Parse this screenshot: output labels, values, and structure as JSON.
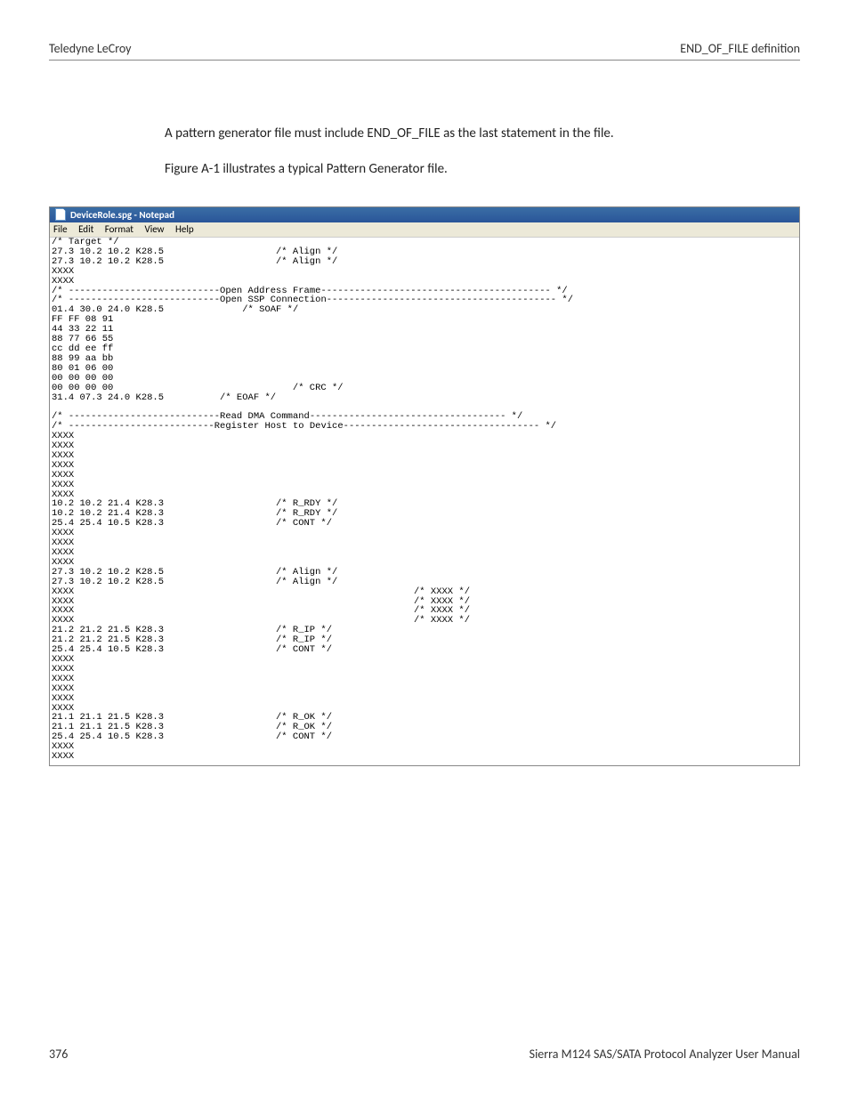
{
  "header": {
    "left": "Teledyne LeCroy",
    "right": "END_OF_FILE definition"
  },
  "paragraphs": {
    "p1": "A pattern generator file must include END_OF_FILE as the last statement in the file.",
    "p2": "Figure A-1 illustrates a typical Pattern Generator file."
  },
  "notepad": {
    "title": "DeviceRole.spg - Notepad",
    "menu": {
      "file": "File",
      "edit": "Edit",
      "format": "Format",
      "view": "View",
      "help": "Help"
    },
    "lines": [
      {
        "c0": "/* Target */",
        "c1": "",
        "c2": ""
      },
      {
        "c0": "27.3 10.2 10.2 K28.5",
        "c1": "/* Align */",
        "c2": ""
      },
      {
        "c0": "27.3 10.2 10.2 K28.5",
        "c1": "/* Align */",
        "c2": ""
      },
      {
        "c0": "XXXX",
        "c1": "",
        "c2": ""
      },
      {
        "c0": "XXXX",
        "c1": "",
        "c2": ""
      },
      {
        "full": "/* ---------------------------Open Address Frame----------------------------------------- */"
      },
      {
        "full": "/* ---------------------------Open SSP Connection----------------------------------------- */"
      },
      {
        "c0": "01.4 30.0 24.0 K28.5",
        "c0pad": "              /* SOAF */",
        "c1": "",
        "c2": ""
      },
      {
        "c0": "FF FF 08 91",
        "c1": "",
        "c2": ""
      },
      {
        "c0": "44 33 22 11",
        "c1": "",
        "c2": ""
      },
      {
        "c0": "88 77 66 55",
        "c1": "",
        "c2": ""
      },
      {
        "c0": "cc dd ee ff",
        "c1": "",
        "c2": ""
      },
      {
        "c0": "88 99 aa bb",
        "c1": "",
        "c2": ""
      },
      {
        "c0": "80 01 06 00",
        "c1": "",
        "c2": ""
      },
      {
        "c0": "00 00 00 00",
        "c1": "",
        "c2": ""
      },
      {
        "c0": "00 00 00 00",
        "c1": "   /* CRC */",
        "c2": ""
      },
      {
        "c0": "31.4 07.3 24.0 K28.5",
        "c0pad": "          /* EOAF */",
        "c1": "",
        "c2": ""
      },
      {
        "c0": " ",
        "c1": "",
        "c2": ""
      },
      {
        "full": "/* ---------------------------Read DMA Command----------------------------------- */"
      },
      {
        "full": "/* --------------------------Register Host to Device----------------------------------- */"
      },
      {
        "c0": "XXXX",
        "c1": "",
        "c2": ""
      },
      {
        "c0": "XXXX",
        "c1": "",
        "c2": ""
      },
      {
        "c0": "XXXX",
        "c1": "",
        "c2": ""
      },
      {
        "c0": "XXXX",
        "c1": "",
        "c2": ""
      },
      {
        "c0": "XXXX",
        "c1": "",
        "c2": ""
      },
      {
        "c0": "XXXX",
        "c1": "",
        "c2": ""
      },
      {
        "c0": "XXXX",
        "c1": "",
        "c2": ""
      },
      {
        "c0": "10.2 10.2 21.4 K28.3",
        "c1": "/* R_RDY */",
        "c2": ""
      },
      {
        "c0": "10.2 10.2 21.4 K28.3",
        "c1": "/* R_RDY */",
        "c2": ""
      },
      {
        "c0": "25.4 25.4 10.5 K28.3",
        "c1": "/* CONT */",
        "c2": ""
      },
      {
        "c0": "XXXX",
        "c1": "",
        "c2": ""
      },
      {
        "c0": "XXXX",
        "c1": "",
        "c2": ""
      },
      {
        "c0": "XXXX",
        "c1": "",
        "c2": ""
      },
      {
        "c0": "XXXX",
        "c1": "",
        "c2": ""
      },
      {
        "c0": "27.3 10.2 10.2 K28.5",
        "c1": "/* Align */",
        "c2": ""
      },
      {
        "c0": "27.3 10.2 10.2 K28.5",
        "c1": "/* Align */",
        "c2": ""
      },
      {
        "c0": "XXXX",
        "c1": "",
        "c2": "/* XXXX */"
      },
      {
        "c0": "XXXX",
        "c1": "",
        "c2": "/* XXXX */"
      },
      {
        "c0": "XXXX",
        "c1": "",
        "c2": "/* XXXX */"
      },
      {
        "c0": "XXXX",
        "c1": "",
        "c2": "/* XXXX */"
      },
      {
        "c0": "21.2 21.2 21.5 K28.3",
        "c1": "/* R_IP */",
        "c2": ""
      },
      {
        "c0": "21.2 21.2 21.5 K28.3",
        "c1": "/* R_IP */",
        "c2": ""
      },
      {
        "c0": "25.4 25.4 10.5 K28.3",
        "c1": "/* CONT */",
        "c2": ""
      },
      {
        "c0": "XXXX",
        "c1": "",
        "c2": ""
      },
      {
        "c0": "XXXX",
        "c1": "",
        "c2": ""
      },
      {
        "c0": "XXXX",
        "c1": "",
        "c2": ""
      },
      {
        "c0": "XXXX",
        "c1": "",
        "c2": ""
      },
      {
        "c0": "XXXX",
        "c1": "",
        "c2": ""
      },
      {
        "c0": "XXXX",
        "c1": "",
        "c2": ""
      },
      {
        "c0": "21.1 21.1 21.5 K28.3",
        "c1": "/* R_OK */",
        "c2": ""
      },
      {
        "c0": "21.1 21.1 21.5 K28.3",
        "c1": "/* R_OK */",
        "c2": ""
      },
      {
        "c0": "25.4 25.4 10.5 K28.3",
        "c1": "/* CONT */",
        "c2": ""
      },
      {
        "c0": "XXXX",
        "c1": "",
        "c2": ""
      },
      {
        "c0": "XXXX",
        "c1": "",
        "c2": ""
      }
    ]
  },
  "footer": {
    "page_number": "376",
    "manual": "Sierra M124 SAS/SATA Protocol Analyzer User Manual"
  },
  "colors": {
    "titlebar_gradient_top": "#3a6ea5",
    "titlebar_gradient_bottom": "#2a5599",
    "menu_bg": "#ece9d8",
    "border": "#888888",
    "text": "#333333",
    "code_text": "#000000",
    "page_bg": "#ffffff"
  }
}
